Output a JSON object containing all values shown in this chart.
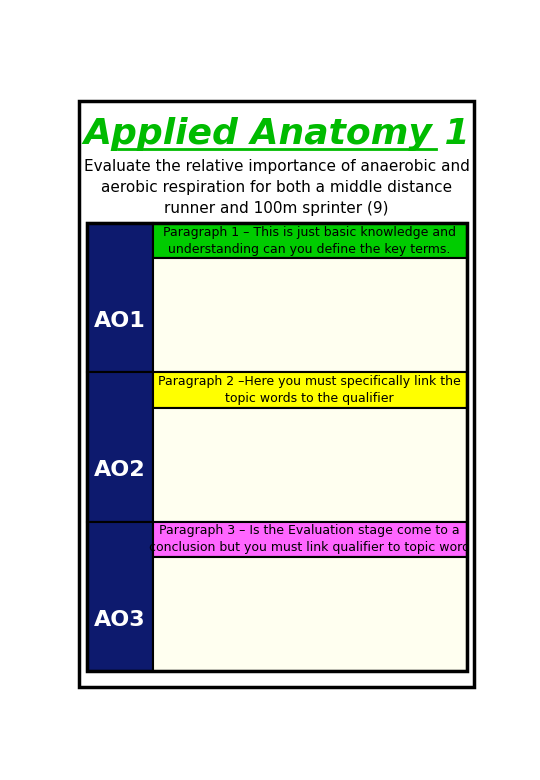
{
  "title": "Applied Anatomy 1",
  "subtitle_lines": [
    "Evaluate the relative importance of anaerobic and",
    "aerobic respiration for both a middle distance",
    "runner and 100m sprinter (9)"
  ],
  "title_color": "#00bb00",
  "subtitle_color": "#000000",
  "background_color": "#ffffff",
  "border_color": "#000000",
  "dark_blue": "#0d1a6e",
  "ao_labels": [
    "AO1",
    "AO2",
    "AO3"
  ],
  "ao_text_color": "#ffffff",
  "paragraph_headers": [
    "Paragraph 1 – This is just basic knowledge and\nunderstanding can you define the key terms.",
    "Paragraph 2 –Here you must specifically link the\ntopic words to the qualifier",
    "Paragraph 3 – Is the Evaluation stage come to a\nconclusion but you must link qualifier to topic word"
  ],
  "header_bg_colors": [
    "#00cc00",
    "#ffff00",
    "#ff66ff"
  ],
  "header_text_color": "#000000",
  "content_bg_color": "#fffff0",
  "outer_border": "#000000"
}
